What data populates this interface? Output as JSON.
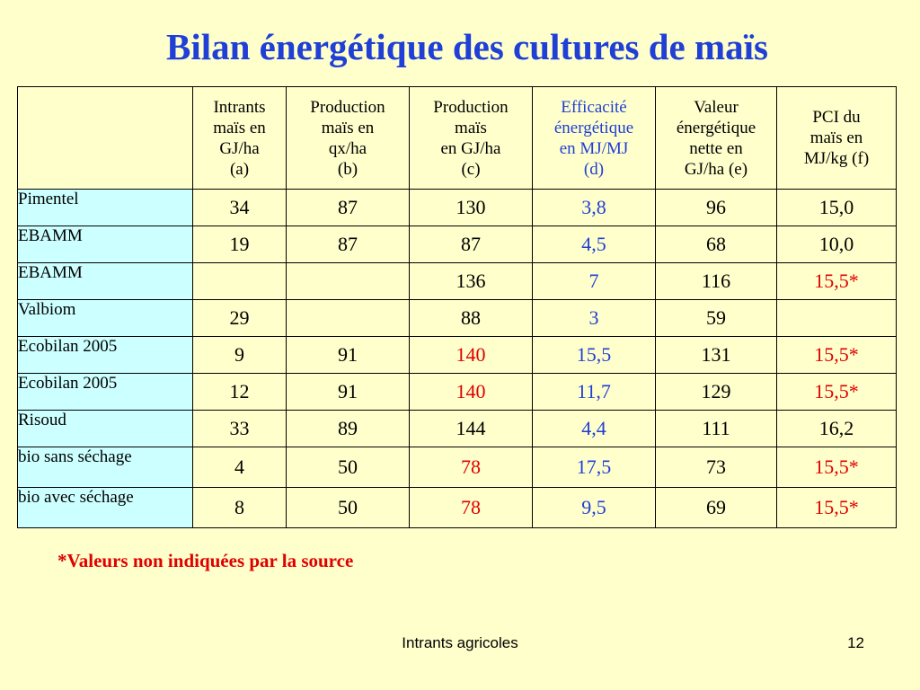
{
  "slide": {
    "title": "Bilan énergétique des cultures de maïs",
    "footnote": "*Valeurs non indiquées par la source",
    "footer_label": "Intrants agricoles",
    "page_number": "12"
  },
  "colors": {
    "background": "#ffffcc",
    "title": "#1f3fd6",
    "row_label_bg": "#ccffff",
    "highlight_blue": "#1f3fd6",
    "highlight_red": "#e00000"
  },
  "table": {
    "headers": [
      {
        "lines": []
      },
      {
        "lines": [
          "Intrants",
          "maïs en",
          "GJ/ha",
          "(a)"
        ]
      },
      {
        "lines": [
          "Production",
          "maïs en",
          "qx/ha",
          "(b)"
        ]
      },
      {
        "lines": [
          "Production",
          "maïs",
          "en GJ/ha",
          "(c)"
        ]
      },
      {
        "lines": [
          "Efficacité",
          "énergétique",
          "en MJ/MJ",
          "(d)"
        ]
      },
      {
        "lines": [
          "Valeur",
          "énergétique",
          "nette en",
          "GJ/ha (e)"
        ]
      },
      {
        "lines": [
          "PCI du",
          "maïs en",
          "MJ/kg (f)"
        ]
      }
    ],
    "rows": [
      {
        "label": "Pimentel",
        "a": "34",
        "b": "87",
        "c": "130",
        "d": "3,8",
        "e": "96",
        "f": "15,0"
      },
      {
        "label": "EBAMM",
        "a": "19",
        "b": "87",
        "c": "87",
        "d": "4,5",
        "e": "68",
        "f": "10,0"
      },
      {
        "label": "EBAMM",
        "a": "",
        "b": "",
        "c": "136",
        "d": "7",
        "e": "116",
        "f": "15,5*"
      },
      {
        "label": "Valbiom",
        "a": "29",
        "b": "",
        "c": "88",
        "d": "3",
        "e": "59",
        "f": ""
      },
      {
        "label": "Ecobilan 2005",
        "a": "9",
        "b": "91",
        "c": "140",
        "d": "15,5",
        "e": "131",
        "f": "15,5*"
      },
      {
        "label": "Ecobilan 2005",
        "a": "12",
        "b": "91",
        "c": "140",
        "d": "11,7",
        "e": "129",
        "f": "15,5*"
      },
      {
        "label": "Risoud",
        "a": "33",
        "b": "89",
        "c": "144",
        "d": "4,4",
        "e": "111",
        "f": "16,2"
      },
      {
        "label": "bio sans séchage",
        "a": "4",
        "b": "50",
        "c": "78",
        "d": "17,5",
        "e": "73",
        "f": "15,5*"
      },
      {
        "label": "bio avec séchage",
        "a": "8",
        "b": "50",
        "c": "78",
        "d": "9,5",
        "e": "69",
        "f": "15,5*"
      }
    ]
  }
}
